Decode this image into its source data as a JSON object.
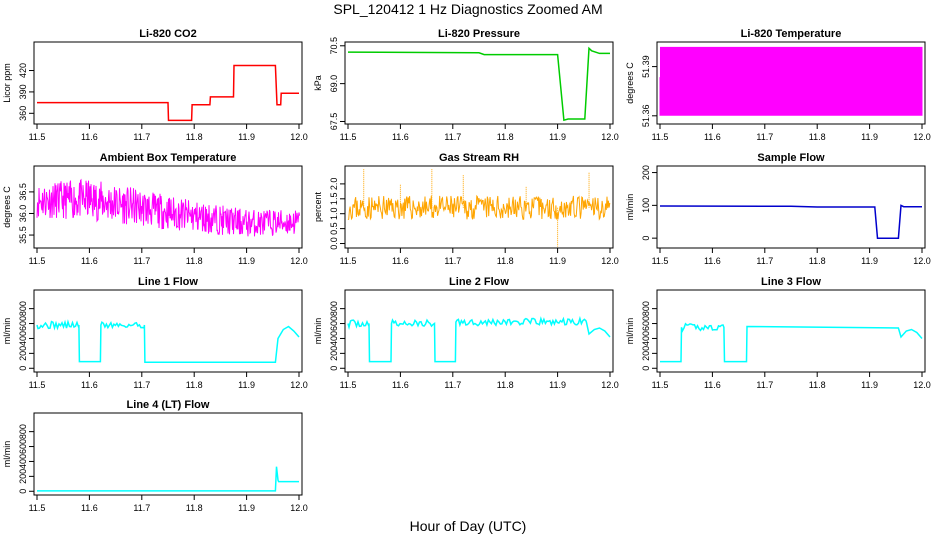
{
  "figure": {
    "title": "SPL_120412  1 Hz Diagnostics Zoomed AM",
    "xlabel": "Hour of Day (UTC)"
  },
  "chart_data": [
    {
      "type": "line",
      "title": "Li-820 CO2",
      "ylabel": "Licor ppm",
      "color": "#ff0000",
      "xlim": [
        11.5,
        12.0
      ],
      "ylim": [
        345,
        460
      ],
      "xticks": [
        "11.5",
        "11.6",
        "11.7",
        "11.8",
        "11.9",
        "12.0"
      ],
      "yticks": [
        360,
        390,
        420
      ],
      "x": [
        11.5,
        11.75,
        11.751,
        11.795,
        11.796,
        11.83,
        11.831,
        11.875,
        11.876,
        11.955,
        11.958,
        11.965,
        11.966,
        12.0
      ],
      "y": [
        375,
        375,
        350,
        350,
        372,
        372,
        383,
        383,
        427,
        427,
        372,
        372,
        388,
        388
      ]
    },
    {
      "type": "line",
      "title": "Li-820 Pressure",
      "ylabel": "kPa",
      "color": "#00cc00",
      "xlim": [
        11.5,
        12.0
      ],
      "ylim": [
        67.4,
        70.65
      ],
      "xticks": [
        "11.5",
        "11.6",
        "11.7",
        "11.8",
        "11.9",
        "12.0"
      ],
      "yticks": [
        67.5,
        69.0,
        70.5
      ],
      "ytick_labels": [
        "67.5",
        "69.0",
        "70.5"
      ],
      "x": [
        11.5,
        11.75,
        11.76,
        11.9,
        11.912,
        11.92,
        11.952,
        11.96,
        11.965,
        11.98,
        12.0
      ],
      "y": [
        70.25,
        70.22,
        70.15,
        70.15,
        67.55,
        67.6,
        67.6,
        70.4,
        70.3,
        70.2,
        70.2
      ]
    },
    {
      "type": "line",
      "title": "Li-820 Temperature",
      "ylabel": "degrees C",
      "color": "#ff00ff",
      "xlim": [
        11.5,
        12.0
      ],
      "ylim": [
        51.355,
        51.405
      ],
      "xticks": [
        "11.5",
        "11.6",
        "11.7",
        "11.8",
        "11.9",
        "12.0"
      ],
      "yticks": [
        51.36,
        51.39
      ],
      "ytick_labels": [
        "51.36",
        "51.39"
      ],
      "band": [
        51.36,
        51.402
      ],
      "noise_seed": 7
    },
    {
      "type": "line",
      "title": "Ambient Box Temperature",
      "ylabel": "degrees C",
      "color": "#ff00ff",
      "xlim": [
        11.5,
        12.0
      ],
      "ylim": [
        35.2,
        37.1
      ],
      "xticks": [
        "11.5",
        "11.6",
        "11.7",
        "11.8",
        "11.9",
        "12.0"
      ],
      "yticks": [
        35.5,
        36.0,
        36.5
      ],
      "ytick_labels": [
        "35.5",
        "36.0",
        "36.5"
      ],
      "trend_x": [
        11.5,
        11.6,
        11.7,
        11.8,
        11.9,
        12.0
      ],
      "trend_lo": [
        35.9,
        35.85,
        35.7,
        35.55,
        35.45,
        35.5
      ],
      "trend_hi": [
        36.7,
        36.8,
        36.55,
        36.3,
        36.1,
        36.1
      ],
      "noise_seed": 11
    },
    {
      "type": "line",
      "title": "Gas Stream RH",
      "ylabel": "percent",
      "color": "#ffa500",
      "xlim": [
        11.5,
        12.0
      ],
      "ylim": [
        -0.15,
        2.6
      ],
      "xticks": [
        "11.5",
        "11.6",
        "11.7",
        "11.8",
        "11.9",
        "12.0"
      ],
      "yticks": [
        0.0,
        0.5,
        1.0,
        1.5,
        2.0
      ],
      "ytick_labels": [
        "0.0",
        "0.5",
        "1.0",
        "1.5",
        "2.0"
      ],
      "band": [
        0.8,
        1.6
      ],
      "spikes_x": [
        11.53,
        11.6,
        11.66,
        11.72,
        11.84,
        11.9,
        11.96
      ],
      "spikes_y": [
        2.5,
        2.0,
        2.5,
        2.3,
        1.9,
        -0.1,
        2.4
      ],
      "noise_seed": 23
    },
    {
      "type": "line",
      "title": "Sample Flow",
      "ylabel": "ml/min",
      "color": "#0000cc",
      "xlim": [
        11.5,
        12.0
      ],
      "ylim": [
        -30,
        220
      ],
      "xticks": [
        "11.5",
        "11.6",
        "11.7",
        "11.8",
        "11.9",
        "12.0"
      ],
      "yticks": [
        0,
        100,
        200
      ],
      "x": [
        11.5,
        11.75,
        11.8,
        11.91,
        11.915,
        11.955,
        11.96,
        11.965,
        12.0
      ],
      "y": [
        98,
        97,
        95,
        95,
        0,
        0,
        100,
        96,
        96
      ]
    },
    {
      "type": "line",
      "title": "Line 1 Flow",
      "ylabel": "ml/min",
      "color": "#00ffff",
      "xlim": [
        11.5,
        12.0
      ],
      "ylim": [
        -50,
        1050
      ],
      "xticks": [
        "11.5",
        "11.6",
        "11.7",
        "11.8",
        "11.9",
        "12.0"
      ],
      "yticks": [
        0,
        200,
        400,
        600,
        800
      ],
      "x": [
        11.5,
        11.58,
        11.581,
        11.621,
        11.622,
        11.705,
        11.706,
        11.955,
        11.96,
        11.97,
        11.98,
        11.99,
        12.0
      ],
      "y": [
        580,
        580,
        90,
        90,
        580,
        580,
        80,
        80,
        400,
        520,
        560,
        500,
        420
      ],
      "noise_seed": 31
    },
    {
      "type": "line",
      "title": "Line 2 Flow",
      "ylabel": "ml/min",
      "color": "#00ffff",
      "xlim": [
        11.5,
        12.0
      ],
      "ylim": [
        -50,
        1050
      ],
      "xticks": [
        "11.5",
        "11.6",
        "11.7",
        "11.8",
        "11.9",
        "12.0"
      ],
      "yticks": [
        0,
        200,
        400,
        600,
        800
      ],
      "x": [
        11.5,
        11.54,
        11.541,
        11.582,
        11.583,
        11.665,
        11.666,
        11.705,
        11.706,
        11.955,
        11.96,
        11.97,
        11.98,
        11.99,
        12.0
      ],
      "y": [
        600,
        600,
        90,
        90,
        600,
        600,
        90,
        90,
        620,
        620,
        460,
        520,
        540,
        500,
        420
      ],
      "noise_seed": 37
    },
    {
      "type": "line",
      "title": "Line 3 Flow",
      "ylabel": "ml/min",
      "color": "#00ffff",
      "xlim": [
        11.5,
        12.0
      ],
      "ylim": [
        -50,
        1050
      ],
      "xticks": [
        "11.5",
        "11.6",
        "11.7",
        "11.8",
        "11.9",
        "12.0"
      ],
      "yticks": [
        0,
        200,
        400,
        600,
        800
      ],
      "x": [
        11.5,
        11.54,
        11.541,
        11.622,
        11.623,
        11.665,
        11.666,
        11.955,
        11.96,
        11.97,
        11.98,
        11.99,
        12.0
      ],
      "y": [
        90,
        90,
        550,
        550,
        90,
        90,
        560,
        540,
        420,
        500,
        520,
        480,
        400
      ],
      "noise_seed": 41
    },
    {
      "type": "line",
      "title": "Line 4 (LT) Flow",
      "ylabel": "ml/min",
      "color": "#00ffff",
      "xlim": [
        11.5,
        12.0
      ],
      "ylim": [
        -50,
        1050
      ],
      "xticks": [
        "11.5",
        "11.6",
        "11.7",
        "11.8",
        "11.9",
        "12.0"
      ],
      "yticks": [
        0,
        200,
        400,
        600,
        800
      ],
      "x": [
        11.5,
        11.955,
        11.956,
        11.957,
        11.96,
        11.961,
        12.0
      ],
      "y": [
        5,
        5,
        150,
        330,
        150,
        130,
        130
      ]
    }
  ]
}
